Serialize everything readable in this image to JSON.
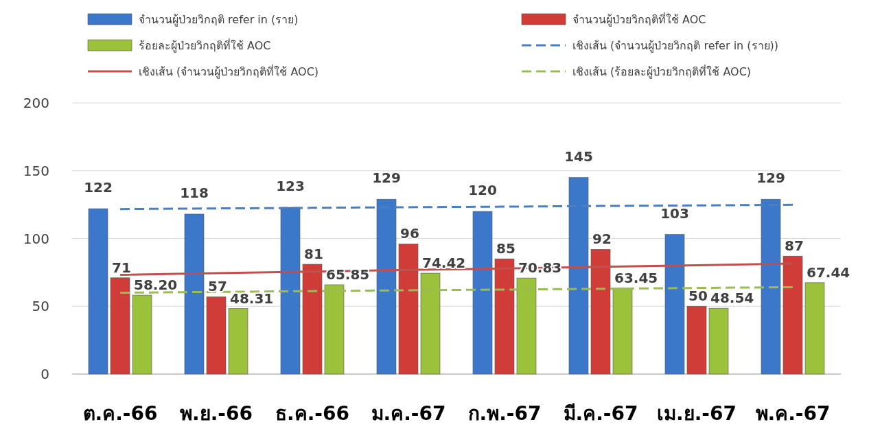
{
  "chart_data": {
    "type": "bar",
    "categories": [
      "ต.ค.-66",
      "พ.ย.-66",
      "ธ.ค.-66",
      "ม.ค.-67",
      "ก.พ.-67",
      "มี.ค.-67",
      "เม.ย.-67",
      "พ.ค.-67"
    ],
    "series": [
      {
        "name": "จำนวนผู้ป่วยวิกฤติ  refer  in  (ราย)",
        "color": "#3b78c9",
        "values": [
          122,
          118,
          123,
          129,
          120,
          145,
          103,
          129
        ],
        "value_labels": [
          "122",
          "118",
          "123",
          "129",
          "120",
          "145",
          "103",
          "129"
        ]
      },
      {
        "name": "จำนวนผู้ป่วยวิกฤติที่ใช้  AOC",
        "color": "#d03c38",
        "values": [
          71,
          57,
          81,
          96,
          85,
          92,
          50,
          87
        ],
        "value_labels": [
          "71",
          "57",
          "81",
          "96",
          "85",
          "92",
          "50",
          "87"
        ]
      },
      {
        "name": "ร้อยละผู้ป่วยวิกฤติที่ใช้ AOC",
        "color": "#9cc23c",
        "values": [
          58.2,
          48.31,
          65.85,
          74.42,
          70.83,
          63.45,
          48.54,
          67.44
        ],
        "value_labels": [
          "58.20",
          "48.31",
          "65.85",
          "74.42",
          "70.83",
          "63.45",
          "48.54",
          "67.44"
        ]
      },
      {
        "name": "เชิงเส้น (จำนวนผู้ป่วยวิกฤติ  refer  in  (ราย))",
        "type": "line",
        "color": "#4a7fc1",
        "line_style": "dashed",
        "values": [
          121.7,
          122.2,
          122.6,
          123.1,
          123.5,
          124.0,
          124.4,
          124.9
        ]
      },
      {
        "name": "เชิงเส้น (จำนวนผู้ป่วยวิกฤติที่ใช้  AOC)",
        "type": "line",
        "color": "#c0504d",
        "line_style": "solid",
        "values": [
          73.2,
          74.4,
          75.6,
          76.8,
          77.9,
          79.1,
          80.3,
          81.5
        ]
      },
      {
        "name": "เชิงเส้น (ร้อยละผู้ป่วยวิกฤติที่ใช้ AOC)",
        "type": "line",
        "color": "#9bbb59",
        "line_style": "dashed",
        "values": [
          60.0,
          60.6,
          61.2,
          61.8,
          62.3,
          62.9,
          63.5,
          64.1
        ]
      }
    ],
    "ylim": [
      0,
      200
    ],
    "yticks": [
      0,
      50,
      100,
      150,
      200
    ],
    "grid": "y",
    "legend": "top"
  }
}
